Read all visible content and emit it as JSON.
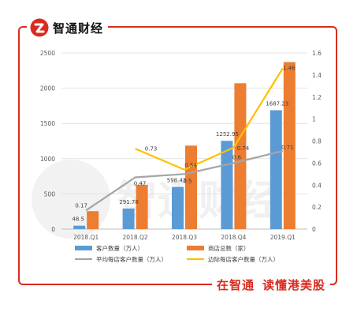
{
  "brand": {
    "name": "智通财经",
    "logo_icon": "zhitong-logo-icon"
  },
  "footer": {
    "slogan_a": "在智通",
    "slogan_b": "读懂港美股"
  },
  "watermark": "智通财经",
  "colors": {
    "frame": "#d92b1f",
    "customers": "#5b9bd5",
    "stores": "#ed7d31",
    "avg": "#a5a5a5",
    "marginal": "#ffc000"
  },
  "chart_data": {
    "type": "bar",
    "categories": [
      "2018.Q1",
      "2018.Q2",
      "2018.Q3",
      "2018.Q4",
      "2019.Q1"
    ],
    "y_left": {
      "range": [
        0,
        2500
      ],
      "ticks": [
        "0",
        "500",
        "1000",
        "1500",
        "2000",
        "2500"
      ]
    },
    "y_right": {
      "range": [
        0,
        1.6
      ],
      "ticks": [
        "0",
        "0.2",
        "0.4",
        "0.6",
        "0.8",
        "1",
        "1.2",
        "1.4",
        "1.6"
      ]
    },
    "grid": true,
    "legend_position": "bottom",
    "series": [
      {
        "name": "客户数量（万人）",
        "type": "bar",
        "axis": "left",
        "color": "#5b9bd5",
        "values": [
          48.5,
          291.78,
          598.43,
          1252.95,
          1687.23
        ],
        "labels": [
          "48.5",
          "291.78",
          "598.43",
          "1252.95",
          "1687.23"
        ]
      },
      {
        "name": "商店总数（家）",
        "type": "bar",
        "axis": "left",
        "color": "#ed7d31",
        "values": [
          255,
          628,
          1185,
          2070,
          2370
        ],
        "labels": []
      },
      {
        "name": "平均每店客户数量（万人）",
        "type": "line",
        "axis": "right",
        "color": "#a5a5a5",
        "values": [
          0.17,
          0.47,
          0.5,
          0.6,
          0.71
        ],
        "labels": [
          "0.17",
          "0.47",
          "0.5",
          "0.6",
          "0.71"
        ]
      },
      {
        "name": "边际每店客户数量（万人）",
        "type": "line",
        "axis": "right",
        "color": "#ffc000",
        "values": [
          null,
          0.73,
          0.54,
          0.74,
          1.46
        ],
        "labels": [
          null,
          "0.73",
          "0.54",
          "0.74",
          "1.46"
        ]
      }
    ]
  }
}
